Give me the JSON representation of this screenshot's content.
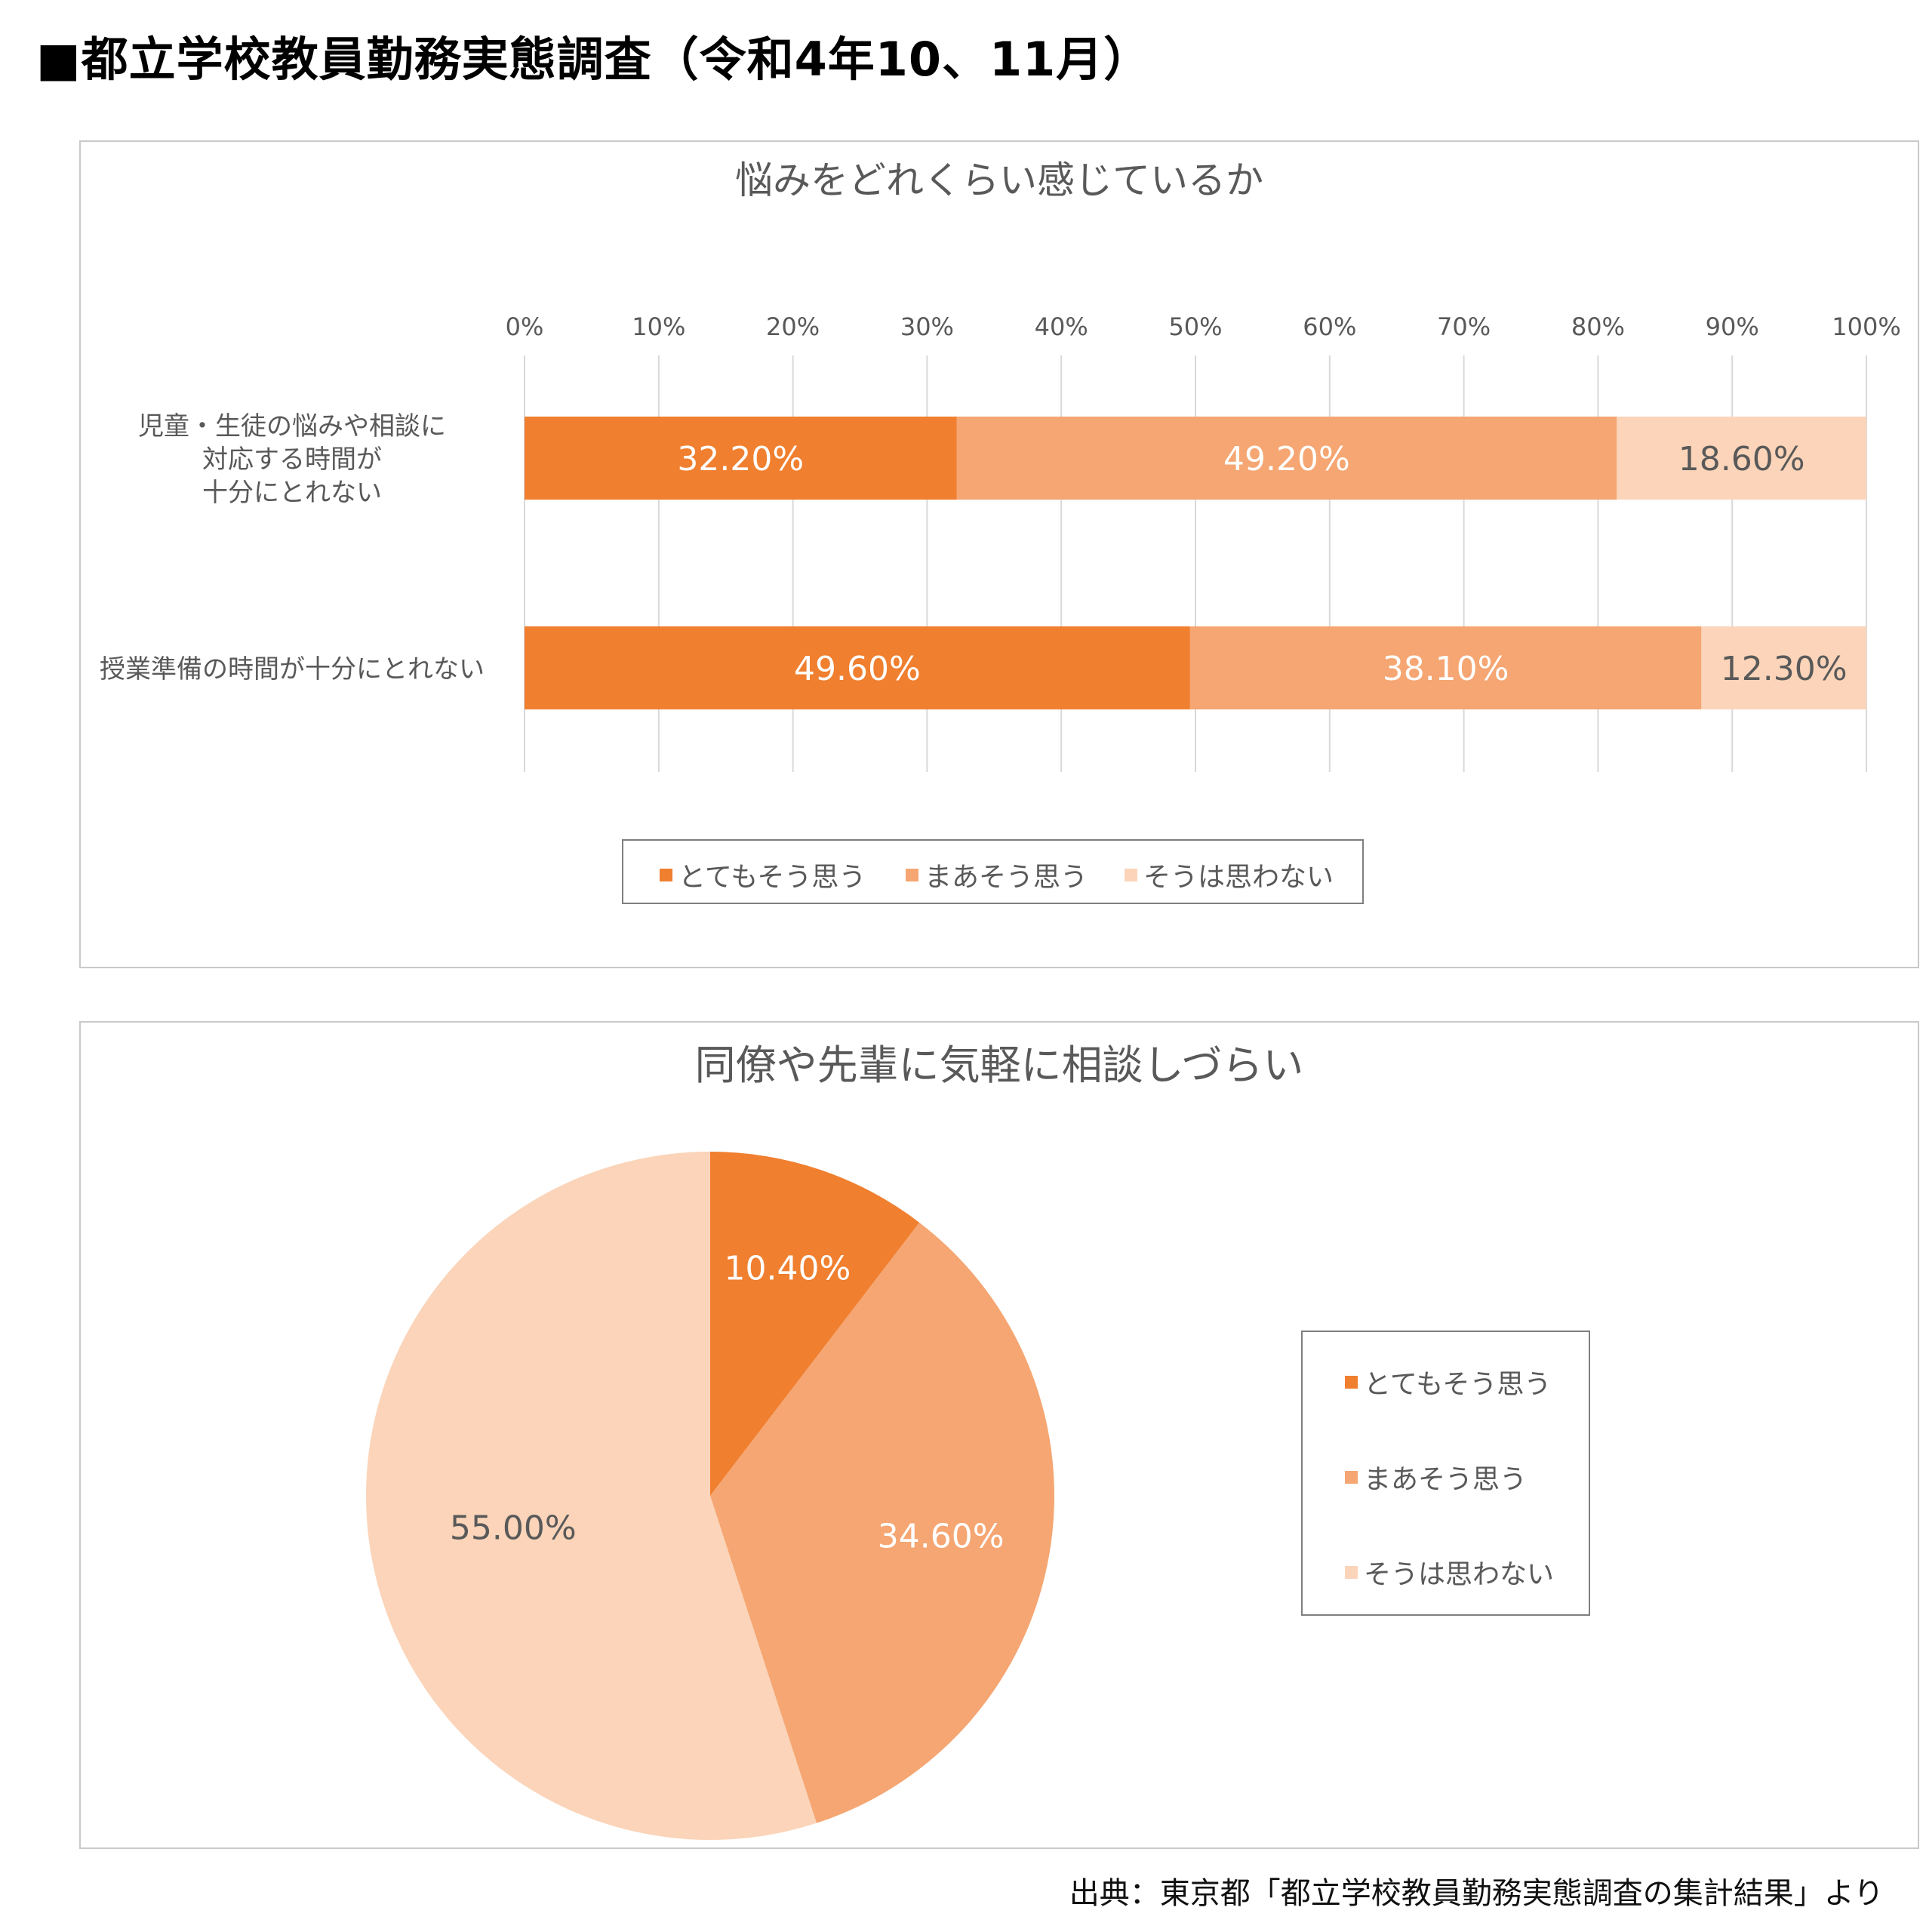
{
  "page": {
    "title": "■都立学校教員勤務実態調査（令和4年10、11月）",
    "source": "出典：東京都「都立学校教員勤務実態調査の集計結果」より"
  },
  "colors": {
    "strong": "#f07f2f",
    "medium": "#f5a672",
    "weak": "#fbd4b9",
    "grid": "#d9d9d9",
    "text": "#595959"
  },
  "legend": [
    "とてもそう思う",
    "まあそう思う",
    "そうは思わない"
  ],
  "chart_data": [
    {
      "type": "bar",
      "orientation": "horizontal",
      "stacked": "percent",
      "title": "悩みをどれくらい感じているか",
      "xlim": [
        0,
        100
      ],
      "ticks": [
        "0%",
        "10%",
        "20%",
        "30%",
        "40%",
        "50%",
        "60%",
        "70%",
        "80%",
        "90%",
        "100%"
      ],
      "categories": [
        [
          "児童・生徒の悩みや相談に",
          "対応する時間が",
          "十分にとれない"
        ],
        [
          "授業準備の時間が十分にとれない"
        ]
      ],
      "series": [
        {
          "name": "とてもそう思う",
          "values": [
            32.2,
            49.6
          ],
          "labels": [
            "32.20%",
            "49.60%"
          ],
          "color": "#f07f2f"
        },
        {
          "name": "まあそう思う",
          "values": [
            49.2,
            38.1
          ],
          "labels": [
            "49.20%",
            "38.10%"
          ],
          "color": "#f5a672"
        },
        {
          "name": "そうは思わない",
          "values": [
            18.6,
            12.3
          ],
          "labels": [
            "18.60%",
            "12.30%"
          ],
          "color": "#fbd4b9"
        }
      ],
      "grid": true,
      "legend_position": "bottom"
    },
    {
      "type": "pie",
      "title": "同僚や先輩に気軽に相談しづらい",
      "categories": [
        "とてもそう思う",
        "まあそう思う",
        "そうは思わない"
      ],
      "values": [
        10.4,
        34.6,
        55.0
      ],
      "labels": [
        "10.40%",
        "34.60%",
        "55.00%"
      ],
      "colors": [
        "#f07f2f",
        "#f5a672",
        "#fbd4b9"
      ],
      "legend_position": "right"
    }
  ]
}
